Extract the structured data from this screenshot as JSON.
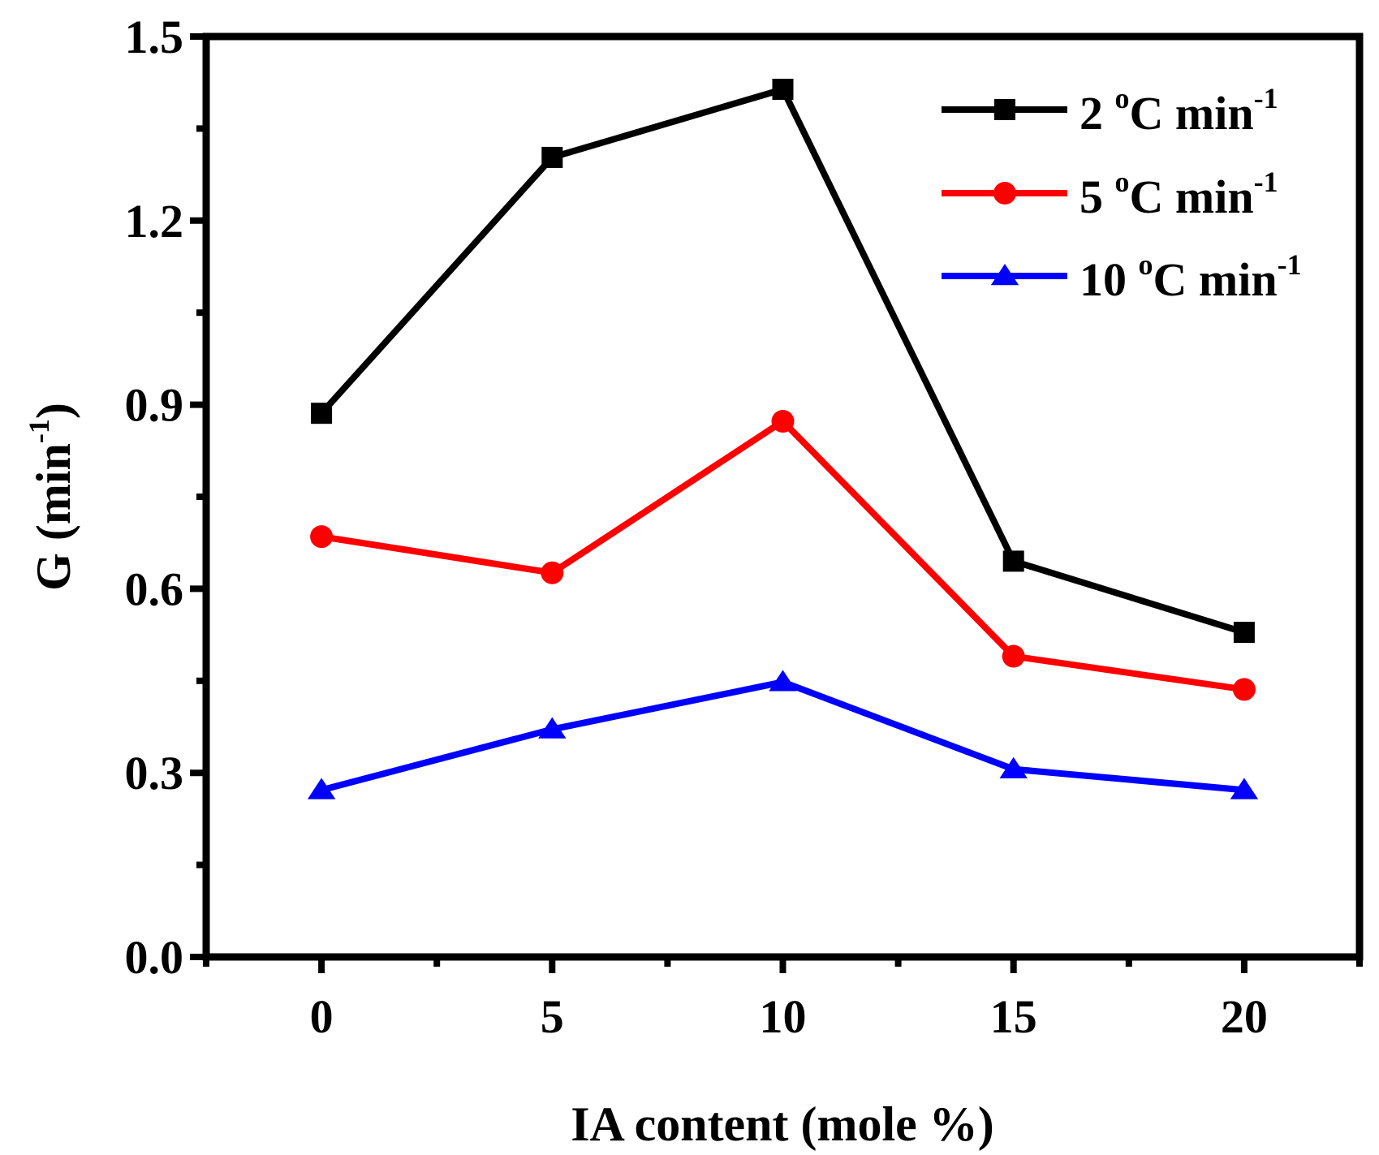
{
  "chart_data": {
    "type": "line",
    "title": "",
    "xlabel": "IA content (mole %)",
    "ylabel": {
      "main": "G (min",
      "sup": "-1",
      "close": ")"
    },
    "x": [
      0,
      5,
      10,
      15,
      20
    ],
    "xlim": [
      -2.5,
      22.5
    ],
    "ylim": [
      0.0,
      1.5
    ],
    "x_ticks": [
      "0",
      "5",
      "10",
      "15",
      "20"
    ],
    "y_ticks": [
      "0.0",
      "0.3",
      "0.6",
      "0.9",
      "1.2",
      "1.5"
    ],
    "y_tick_values": [
      0.0,
      0.3,
      0.6,
      0.9,
      1.2,
      1.5
    ],
    "legend_position": "top-right",
    "grid": false,
    "series": [
      {
        "name": "2 oC min-1",
        "label": {
          "num": "2 ",
          "deg": "o",
          "unit": "C min",
          "exp": "-1"
        },
        "color": "#000000",
        "marker": "square",
        "values": [
          0.886,
          1.303,
          1.414,
          0.645,
          0.529
        ]
      },
      {
        "name": "5 oC min-1",
        "label": {
          "num": "5 ",
          "deg": "o",
          "unit": "C min",
          "exp": "-1"
        },
        "color": "#ff0000",
        "marker": "circle",
        "values": [
          0.685,
          0.626,
          0.873,
          0.49,
          0.436
        ]
      },
      {
        "name": "10 oC min-1",
        "label": {
          "num": "10 ",
          "deg": "o",
          "unit": "C min",
          "exp": "-1"
        },
        "color": "#0000ff",
        "marker": "triangle",
        "values": [
          0.272,
          0.371,
          0.448,
          0.306,
          0.272
        ]
      }
    ]
  }
}
